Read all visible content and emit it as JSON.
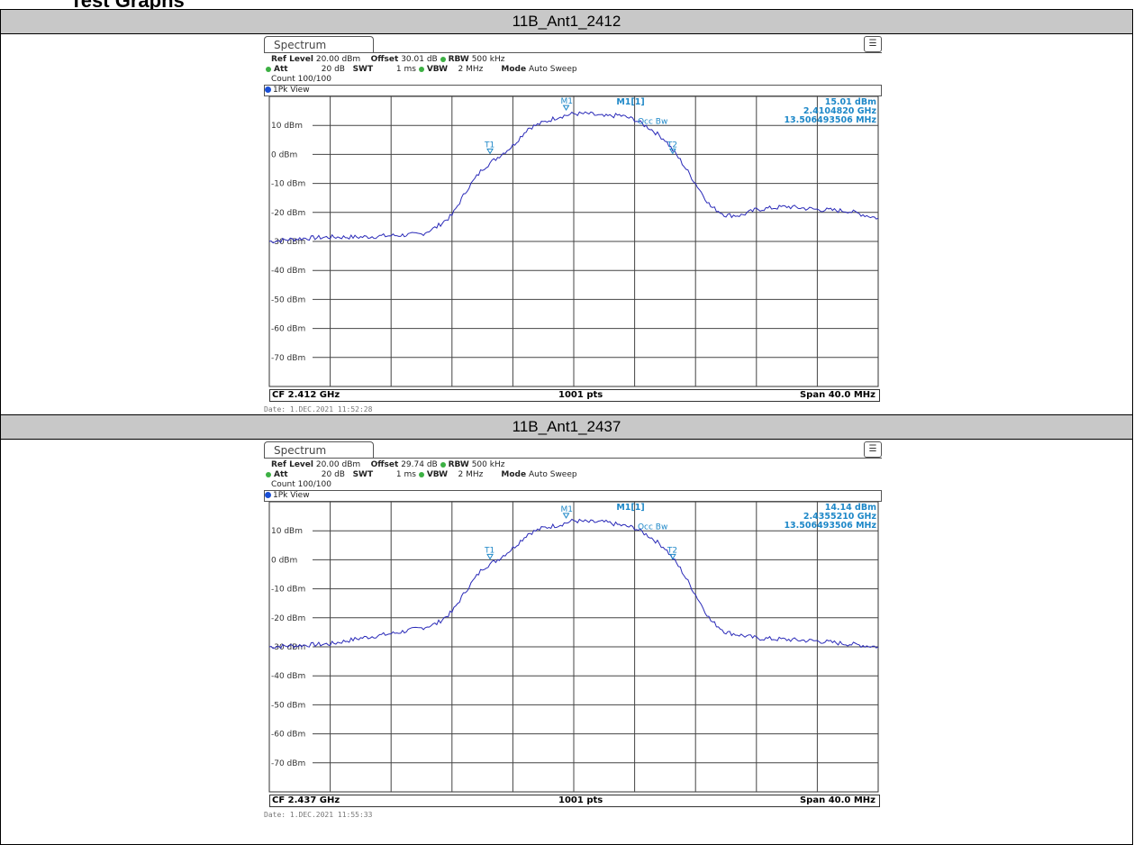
{
  "document": {
    "heading": "Test Graphs"
  },
  "sections": [
    {
      "title": "11B_Ant1_2412",
      "tab": "Spectrum",
      "menu_icon": "display-menu-icon",
      "params": {
        "ref_level_label": "Ref Level",
        "ref_level": "20.00 dBm",
        "offset_label": "Offset",
        "offset": "30.01 dB",
        "rbw_label": "RBW",
        "rbw": "500 kHz",
        "att_label": "Att",
        "att": "20 dB",
        "swt_label": "SWT",
        "swt": "1 ms",
        "vbw_label": "VBW",
        "vbw": "2 MHz",
        "mode_label": "Mode",
        "mode": "Auto Sweep",
        "count": "Count 100/100"
      },
      "view_label": "1Pk View",
      "marker_readout": {
        "name": "M1[1]",
        "level": "15.01 dBm",
        "freq": "2.4104820 GHz",
        "occ_bw": "13.506493506 MHz"
      },
      "markers": {
        "m1": "M1",
        "t1": "T1",
        "t2": "T2",
        "occ": "Occ Bw"
      },
      "footer": {
        "cf": "CF 2.412 GHz",
        "pts": "1001 pts",
        "span": "Span 40.0 MHz"
      },
      "date": "Date: 1.DEC.2021  11:52:28"
    },
    {
      "title": "11B_Ant1_2437",
      "tab": "Spectrum",
      "menu_icon": "display-menu-icon",
      "params": {
        "ref_level_label": "Ref Level",
        "ref_level": "20.00 dBm",
        "offset_label": "Offset",
        "offset": "29.74 dB",
        "rbw_label": "RBW",
        "rbw": "500 kHz",
        "att_label": "Att",
        "att": "20 dB",
        "swt_label": "SWT",
        "swt": "1 ms",
        "vbw_label": "VBW",
        "vbw": "2 MHz",
        "mode_label": "Mode",
        "mode": "Auto Sweep",
        "count": "Count 100/100"
      },
      "view_label": "1Pk View",
      "marker_readout": {
        "name": "M1[1]",
        "level": "14.14 dBm",
        "freq": "2.4355210 GHz",
        "occ_bw": "13.506493506 MHz"
      },
      "markers": {
        "m1": "M1",
        "t1": "T1",
        "t2": "T2",
        "occ": "Occ Bw"
      },
      "footer": {
        "cf": "CF 2.437 GHz",
        "pts": "1001 pts",
        "span": "Span 40.0 MHz"
      },
      "date": "Date: 1.DEC.2021  11:55:33"
    }
  ],
  "chart_data": [
    {
      "type": "line",
      "title": "11B_Ant1_2412",
      "xlabel": "",
      "ylabel": "",
      "x_divisions": 10,
      "x_center_ghz": 2.412,
      "x_span_mhz": 40.0,
      "xlim_mhz": [
        -20,
        20
      ],
      "ylim": [
        -80,
        20
      ],
      "y_ticks": [
        "10 dBm",
        "0 dBm",
        "-10 dBm",
        "-20 dBm",
        "-30 dBm",
        "-40 dBm",
        "-50 dBm",
        "-60 dBm",
        "-70 dBm"
      ],
      "y_tick_values": [
        10,
        0,
        -10,
        -20,
        -30,
        -40,
        -50,
        -60,
        -70
      ],
      "grid": true,
      "series": [
        {
          "x": [
            -20,
            -18,
            -16,
            -14,
            -12,
            -10,
            -9,
            -8,
            -7,
            -6,
            -5,
            -4,
            -3,
            -2,
            -1,
            0,
            1,
            2,
            3,
            4,
            5,
            6,
            7,
            8,
            9,
            10,
            11,
            12,
            14,
            16,
            18,
            20
          ],
          "y": [
            -30,
            -29,
            -28.5,
            -28.5,
            -28,
            -27.5,
            -25,
            -21,
            -12,
            -5,
            -1,
            3,
            9,
            11,
            13,
            14,
            14,
            13,
            13.5,
            12,
            9,
            5,
            -2,
            -10,
            -18,
            -21,
            -21,
            -19,
            -18,
            -19,
            -19.5,
            -22
          ]
        }
      ],
      "markers": [
        {
          "name": "M1",
          "x": -0.5,
          "y": 15.01
        },
        {
          "name": "T1",
          "x": -5.5,
          "y": 0
        },
        {
          "name": "T2",
          "x": 6.5,
          "y": 0
        }
      ]
    },
    {
      "type": "line",
      "title": "11B_Ant1_2437",
      "xlabel": "",
      "ylabel": "",
      "x_divisions": 10,
      "x_center_ghz": 2.437,
      "x_span_mhz": 40.0,
      "xlim_mhz": [
        -20,
        20
      ],
      "ylim": [
        -80,
        20
      ],
      "y_ticks": [
        "10 dBm",
        "0 dBm",
        "-10 dBm",
        "-20 dBm",
        "-30 dBm",
        "-40 dBm",
        "-50 dBm",
        "-60 dBm",
        "-70 dBm"
      ],
      "y_tick_values": [
        10,
        0,
        -10,
        -20,
        -30,
        -40,
        -50,
        -60,
        -70
      ],
      "grid": true,
      "series": [
        {
          "x": [
            -20,
            -18,
            -16,
            -14,
            -12,
            -10,
            -9,
            -8,
            -7,
            -6,
            -5,
            -4,
            -3,
            -2,
            -1,
            0,
            1,
            2,
            3,
            4,
            5,
            6,
            7,
            8,
            9,
            10,
            12,
            14,
            16,
            18,
            20
          ],
          "y": [
            -30,
            -29.5,
            -29,
            -27,
            -25.5,
            -23.5,
            -22,
            -18,
            -10,
            -3,
            0,
            4,
            9,
            11,
            12,
            13.5,
            13,
            13,
            12,
            11,
            8,
            4,
            -3,
            -12,
            -21,
            -25,
            -27,
            -27.5,
            -28,
            -29,
            -30
          ]
        }
      ],
      "markers": [
        {
          "name": "M1",
          "x": -0.5,
          "y": 14.14
        },
        {
          "name": "T1",
          "x": -5.5,
          "y": 0
        },
        {
          "name": "T2",
          "x": 6.5,
          "y": 0
        }
      ]
    }
  ]
}
